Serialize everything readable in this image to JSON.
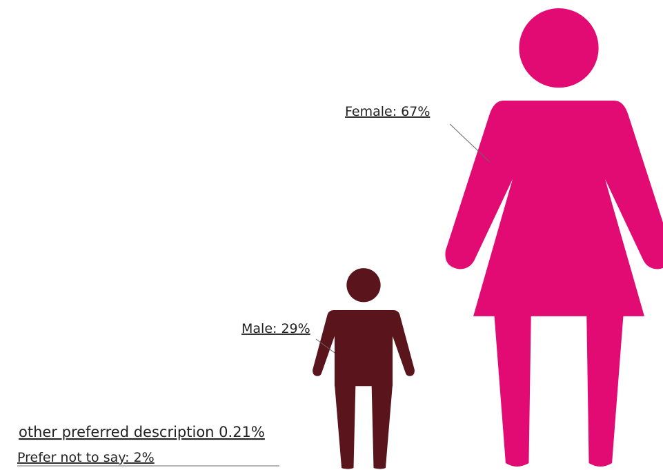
{
  "chart_data": {
    "type": "pictogram",
    "value_labels": [
      "Female: 67%",
      "Male: 29%",
      "other preferred description 0.21%",
      "Prefer not to say: 2%"
    ],
    "values": [
      67,
      29,
      0.21,
      2
    ],
    "icons": [
      "female",
      "male",
      null,
      null
    ],
    "colors": [
      "#e20b73",
      "#5a141b",
      null,
      null
    ]
  }
}
